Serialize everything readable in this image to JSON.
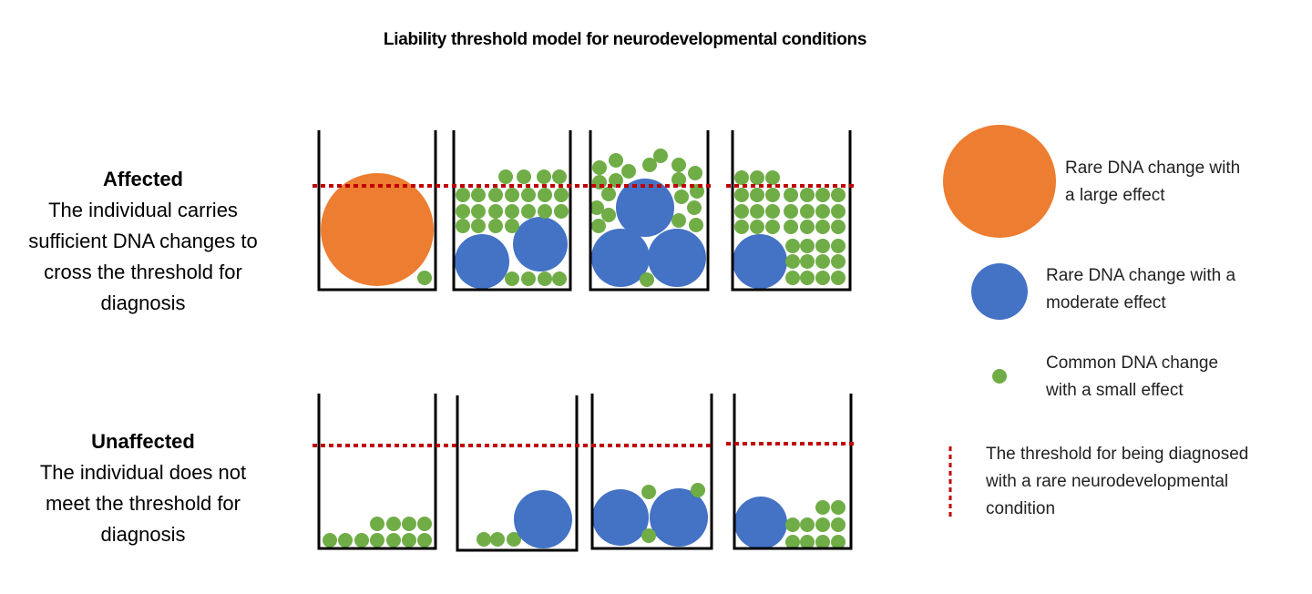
{
  "title": "Liability threshold model for neurodevelopmental conditions",
  "rows": [
    {
      "heading": "Affected",
      "lines": [
        "The individual carries",
        "sufficient DNA changes to",
        "cross the threshold for",
        "diagnosis"
      ]
    },
    {
      "heading": "Unaffected",
      "lines": [
        "The individual does not",
        "meet the threshold for",
        "diagnosis"
      ]
    }
  ],
  "legend": [
    {
      "icon": "large-orange-circle",
      "color": "#ED7D31",
      "lines": [
        "Rare DNA change with",
        "a large effect"
      ]
    },
    {
      "icon": "medium-blue-circle",
      "color": "#4472C4",
      "lines": [
        "Rare DNA change with a",
        "moderate effect"
      ]
    },
    {
      "icon": "small-green-circle",
      "color": "#70AD47",
      "lines": [
        "Common DNA change",
        "with a small effect"
      ]
    },
    {
      "icon": "red-dotted-line",
      "color": "#C00000",
      "lines": [
        "The threshold for being diagnosed",
        "with a rare neurodevelopmental",
        "condition"
      ]
    }
  ]
}
